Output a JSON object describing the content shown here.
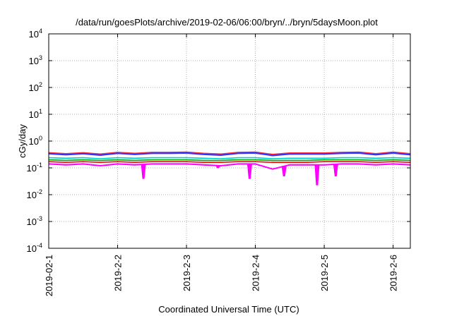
{
  "chart_data": {
    "type": "line",
    "title": "/data/run/goesPlots/archive/2019-02-06/06:00/bryn/../bryn/5daysMoon.plot",
    "xlabel": "Coordinated Universal Time (UTC)",
    "ylabel": "cGy/day",
    "yscale": "log",
    "ylim": [
      0.0001,
      10000
    ],
    "xlim": [
      "2019-02-01T00:00",
      "2019-02-06T06:00"
    ],
    "grid": true,
    "legend": "none",
    "y_ticks": [
      {
        "value": 0.0001,
        "base": "10",
        "exp": "-4"
      },
      {
        "value": 0.001,
        "base": "10",
        "exp": "-3"
      },
      {
        "value": 0.01,
        "base": "10",
        "exp": "-2"
      },
      {
        "value": 0.1,
        "base": "10",
        "exp": "-1"
      },
      {
        "value": 1,
        "base": "10",
        "exp": "0"
      },
      {
        "value": 10,
        "base": "10",
        "exp": "1"
      },
      {
        "value": 100,
        "base": "10",
        "exp": "2"
      },
      {
        "value": 1000,
        "base": "10",
        "exp": "3"
      },
      {
        "value": 10000,
        "base": "10",
        "exp": "4"
      }
    ],
    "x_ticks": [
      {
        "value": "2019-02-01T00:00",
        "label": "2019-02-1"
      },
      {
        "value": "2019-02-02T00:00",
        "label": "2019-2-2"
      },
      {
        "value": "2019-02-03T00:00",
        "label": "2019-2-3"
      },
      {
        "value": "2019-02-04T00:00",
        "label": "2019-2-4"
      },
      {
        "value": "2019-02-05T00:00",
        "label": "2019-2-5"
      },
      {
        "value": "2019-02-06T00:00",
        "label": "2019-2-6"
      }
    ],
    "series": [
      {
        "color": "#ff00ff",
        "x": [
          "2019-02-01T00:00",
          "2019-02-01T06:00",
          "2019-02-01T12:00",
          "2019-02-01T18:00",
          "2019-02-02T00:00",
          "2019-02-02T06:00",
          "2019-02-02T12:00",
          "2019-02-02T18:00",
          "2019-02-03T00:00",
          "2019-02-03T06:00",
          "2019-02-03T12:00",
          "2019-02-03T18:00",
          "2019-02-04T00:00",
          "2019-02-04T06:00",
          "2019-02-04T12:00",
          "2019-02-04T18:00",
          "2019-02-05T00:00",
          "2019-02-05T06:00",
          "2019-02-05T12:00",
          "2019-02-05T18:00",
          "2019-02-06T00:00",
          "2019-02-06T06:00"
        ],
        "y": [
          0.14,
          0.13,
          0.14,
          0.12,
          0.14,
          0.13,
          0.14,
          0.14,
          0.14,
          0.13,
          0.12,
          0.14,
          0.14,
          0.09,
          0.13,
          0.13,
          0.13,
          0.14,
          0.14,
          0.13,
          0.14,
          0.13
        ]
      },
      {
        "color": "#ff0000",
        "x": [
          "2019-02-01T00:00",
          "2019-02-01T06:00",
          "2019-02-01T12:00",
          "2019-02-01T18:00",
          "2019-02-02T00:00",
          "2019-02-02T06:00",
          "2019-02-02T12:00",
          "2019-02-02T18:00",
          "2019-02-03T00:00",
          "2019-02-03T06:00",
          "2019-02-03T12:00",
          "2019-02-03T18:00",
          "2019-02-04T00:00",
          "2019-02-04T06:00",
          "2019-02-04T12:00",
          "2019-02-04T18:00",
          "2019-02-05T00:00",
          "2019-02-05T06:00",
          "2019-02-05T12:00",
          "2019-02-05T18:00",
          "2019-02-06T00:00",
          "2019-02-06T06:00"
        ],
        "y": [
          0.17,
          0.16,
          0.17,
          0.16,
          0.17,
          0.16,
          0.17,
          0.17,
          0.17,
          0.16,
          0.16,
          0.17,
          0.17,
          0.16,
          0.16,
          0.16,
          0.17,
          0.17,
          0.17,
          0.16,
          0.17,
          0.16
        ]
      },
      {
        "color": "#00aa00",
        "x": [
          "2019-02-01T00:00",
          "2019-02-01T06:00",
          "2019-02-01T12:00",
          "2019-02-01T18:00",
          "2019-02-02T00:00",
          "2019-02-02T06:00",
          "2019-02-02T12:00",
          "2019-02-02T18:00",
          "2019-02-03T00:00",
          "2019-02-03T06:00",
          "2019-02-03T12:00",
          "2019-02-03T18:00",
          "2019-02-04T00:00",
          "2019-02-04T06:00",
          "2019-02-04T12:00",
          "2019-02-04T18:00",
          "2019-02-05T00:00",
          "2019-02-05T06:00",
          "2019-02-05T12:00",
          "2019-02-05T18:00",
          "2019-02-06T00:00",
          "2019-02-06T06:00"
        ],
        "y": [
          0.2,
          0.19,
          0.2,
          0.19,
          0.2,
          0.19,
          0.2,
          0.2,
          0.2,
          0.19,
          0.19,
          0.2,
          0.2,
          0.19,
          0.19,
          0.19,
          0.2,
          0.2,
          0.2,
          0.19,
          0.2,
          0.19
        ]
      },
      {
        "color": "#00cccc",
        "x": [
          "2019-02-01T00:00",
          "2019-02-01T06:00",
          "2019-02-01T12:00",
          "2019-02-01T18:00",
          "2019-02-02T00:00",
          "2019-02-02T06:00",
          "2019-02-02T12:00",
          "2019-02-02T18:00",
          "2019-02-03T00:00",
          "2019-02-03T06:00",
          "2019-02-03T12:00",
          "2019-02-03T18:00",
          "2019-02-04T00:00",
          "2019-02-04T06:00",
          "2019-02-04T12:00",
          "2019-02-04T18:00",
          "2019-02-05T00:00",
          "2019-02-05T06:00",
          "2019-02-05T12:00",
          "2019-02-05T18:00",
          "2019-02-06T00:00",
          "2019-02-06T06:00"
        ],
        "y": [
          0.24,
          0.23,
          0.24,
          0.22,
          0.24,
          0.23,
          0.24,
          0.24,
          0.24,
          0.23,
          0.22,
          0.24,
          0.24,
          0.22,
          0.23,
          0.23,
          0.23,
          0.24,
          0.24,
          0.23,
          0.24,
          0.23
        ]
      },
      {
        "color": "#ff3333",
        "x": [
          "2019-02-01T00:00",
          "2019-02-01T06:00",
          "2019-02-01T12:00",
          "2019-02-01T18:00",
          "2019-02-02T00:00",
          "2019-02-02T06:00",
          "2019-02-02T12:00",
          "2019-02-02T18:00",
          "2019-02-03T00:00",
          "2019-02-03T06:00",
          "2019-02-03T12:00",
          "2019-02-03T18:00",
          "2019-02-04T00:00",
          "2019-02-04T06:00",
          "2019-02-04T12:00",
          "2019-02-04T18:00",
          "2019-02-05T00:00",
          "2019-02-05T06:00",
          "2019-02-05T12:00",
          "2019-02-05T18:00",
          "2019-02-06T00:00",
          "2019-02-06T06:00"
        ],
        "y": [
          0.36,
          0.33,
          0.36,
          0.32,
          0.37,
          0.34,
          0.37,
          0.37,
          0.38,
          0.34,
          0.32,
          0.37,
          0.38,
          0.31,
          0.35,
          0.35,
          0.35,
          0.37,
          0.38,
          0.33,
          0.38,
          0.33
        ]
      },
      {
        "color": "#3333ff",
        "x": [
          "2019-02-01T00:00",
          "2019-02-01T06:00",
          "2019-02-01T12:00",
          "2019-02-01T18:00",
          "2019-02-02T00:00",
          "2019-02-02T06:00",
          "2019-02-02T12:00",
          "2019-02-02T18:00",
          "2019-02-03T00:00",
          "2019-02-03T06:00",
          "2019-02-03T12:00",
          "2019-02-03T18:00",
          "2019-02-04T00:00",
          "2019-02-04T06:00",
          "2019-02-04T12:00",
          "2019-02-04T18:00",
          "2019-02-05T00:00",
          "2019-02-05T06:00",
          "2019-02-05T12:00",
          "2019-02-05T18:00",
          "2019-02-06T00:00",
          "2019-02-06T06:00"
        ],
        "y": [
          0.34,
          0.31,
          0.34,
          0.3,
          0.35,
          0.32,
          0.35,
          0.35,
          0.36,
          0.32,
          0.3,
          0.35,
          0.36,
          0.29,
          0.33,
          0.33,
          0.33,
          0.35,
          0.36,
          0.31,
          0.36,
          0.31
        ]
      }
    ],
    "dips": [
      {
        "x": "2019-02-02T09:00",
        "y": 0.04
      },
      {
        "x": "2019-02-03T11:00",
        "y": 0.1
      },
      {
        "x": "2019-02-03T22:00",
        "y": 0.04
      },
      {
        "x": "2019-02-04T10:00",
        "y": 0.05
      },
      {
        "x": "2019-02-04T21:30",
        "y": 0.023
      },
      {
        "x": "2019-02-05T04:00",
        "y": 0.05
      }
    ]
  }
}
